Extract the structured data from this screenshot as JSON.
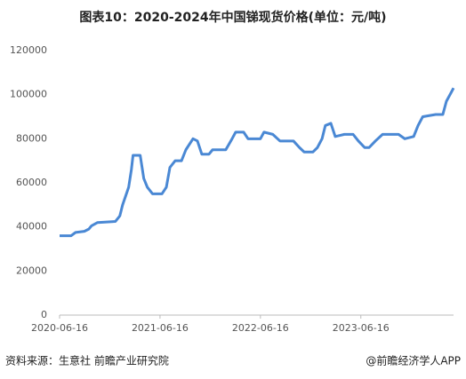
{
  "chart_data": {
    "type": "line",
    "title": "图表10：2020-2024年中国锑现货价格(单位：元/吨)",
    "x": [
      "2020-06-16",
      "2020-07-28",
      "2020-08-13",
      "2020-09-14",
      "2020-09-30",
      "2020-10-10",
      "2020-11-01",
      "2021-01-05",
      "2021-01-21",
      "2021-01-31",
      "2021-02-22",
      "2021-03-04",
      "2021-03-10",
      "2021-04-05",
      "2021-04-18",
      "2021-05-01",
      "2021-05-20",
      "2021-06-23",
      "2021-07-09",
      "2021-07-22",
      "2021-08-10",
      "2021-09-02",
      "2021-09-18",
      "2021-10-14",
      "2021-10-30",
      "2021-11-15",
      "2021-12-11",
      "2021-12-24",
      "2022-02-10",
      "2022-03-05",
      "2022-03-18",
      "2022-04-16",
      "2022-05-02",
      "2022-06-16",
      "2022-06-29",
      "2022-07-31",
      "2022-08-26",
      "2022-10-14",
      "2022-11-05",
      "2022-11-22",
      "2022-12-24",
      "2023-01-09",
      "2023-01-26",
      "2023-02-07",
      "2023-02-27",
      "2023-03-15",
      "2023-04-17",
      "2023-05-19",
      "2023-06-07",
      "2023-06-30",
      "2023-07-16",
      "2023-08-08",
      "2023-09-03",
      "2023-10-31",
      "2023-11-23",
      "2023-12-25",
      "2024-01-10",
      "2024-01-27",
      "2024-03-14",
      "2024-04-09",
      "2024-04-22",
      "2024-05-05",
      "2024-05-18"
    ],
    "series": [
      {
        "name": "锑现货价格",
        "color": "#4a88d4",
        "values": [
          36000,
          36000,
          37500,
          38000,
          39000,
          40500,
          42000,
          42500,
          45000,
          50000,
          58000,
          66000,
          72500,
          72500,
          62000,
          58000,
          55000,
          55000,
          58000,
          67000,
          70000,
          70000,
          75000,
          80000,
          79000,
          73000,
          73000,
          75000,
          75000,
          80000,
          83000,
          83000,
          80000,
          80000,
          83000,
          82000,
          79000,
          79000,
          76000,
          74000,
          74000,
          76000,
          80000,
          86000,
          87000,
          81000,
          82000,
          82000,
          79000,
          76000,
          76000,
          79000,
          82000,
          82000,
          80000,
          81000,
          86000,
          90000,
          91000,
          91000,
          97000,
          100000,
          103000
        ]
      }
    ],
    "xlim": [
      "2020-06-16",
      "2024-05-18"
    ],
    "xticks": [
      "2020-06-16",
      "2021-06-16",
      "2022-06-16",
      "2023-06-16"
    ],
    "ylim": [
      0,
      120000
    ],
    "yticks": [
      0,
      20000,
      40000,
      60000,
      80000,
      100000,
      120000
    ],
    "grid": false,
    "source": "资料来源：生意社 前瞻产业研究院",
    "credit": "@前瞻经济学人APP"
  }
}
